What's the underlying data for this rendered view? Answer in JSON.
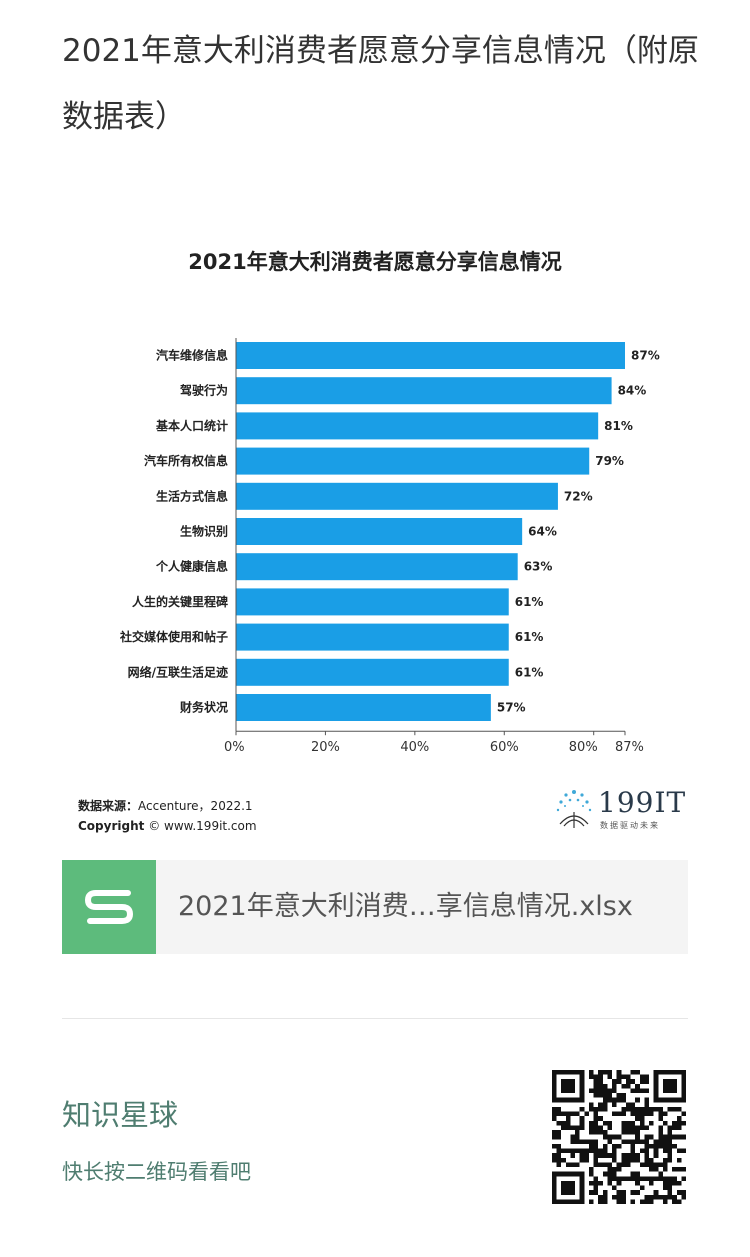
{
  "page": {
    "title": "2021年意大利消费者愿意分享信息情况（附原数据表）"
  },
  "chart_data": {
    "type": "bar",
    "orientation": "horizontal",
    "title": "2021年意大利消费者愿意分享信息情况",
    "categories": [
      "汽车维修信息",
      "驾驶行为",
      "基本人口统计",
      "汽车所有权信息",
      "生活方式信息",
      "生物识别",
      "个人健康信息",
      "人生的关键里程碑",
      "社交媒体使用和帖子",
      "网络/互联生活足迹",
      "财务状况"
    ],
    "values": [
      87,
      84,
      81,
      79,
      72,
      64,
      63,
      61,
      61,
      61,
      57
    ],
    "value_labels": [
      "87%",
      "84%",
      "81%",
      "79%",
      "72%",
      "64%",
      "63%",
      "61%",
      "61%",
      "61%",
      "57%"
    ],
    "x_ticks": [
      "0%",
      "20%",
      "40%",
      "60%",
      "80%",
      "87%"
    ],
    "x_tick_values": [
      0,
      20,
      40,
      60,
      80,
      87
    ],
    "xlim": [
      0,
      87
    ],
    "bar_color": "#1a9ee6",
    "grid": false,
    "legend": "none"
  },
  "source": {
    "label": "数据来源：",
    "value": "Accenture，2022.1",
    "copyright_label": "Copyright",
    "copyright_value": "© www.199it.com"
  },
  "logo": {
    "text": "199IT",
    "sub": "数据驱动未来"
  },
  "file": {
    "name": "2021年意大利消费…享信息情况.xlsx",
    "icon": "spreadsheet-s-icon",
    "icon_color": "#5dbb7c"
  },
  "planet": {
    "title": "知识星球",
    "subtitle": "快长按二维码看看吧",
    "accent": "#4f7d70"
  }
}
